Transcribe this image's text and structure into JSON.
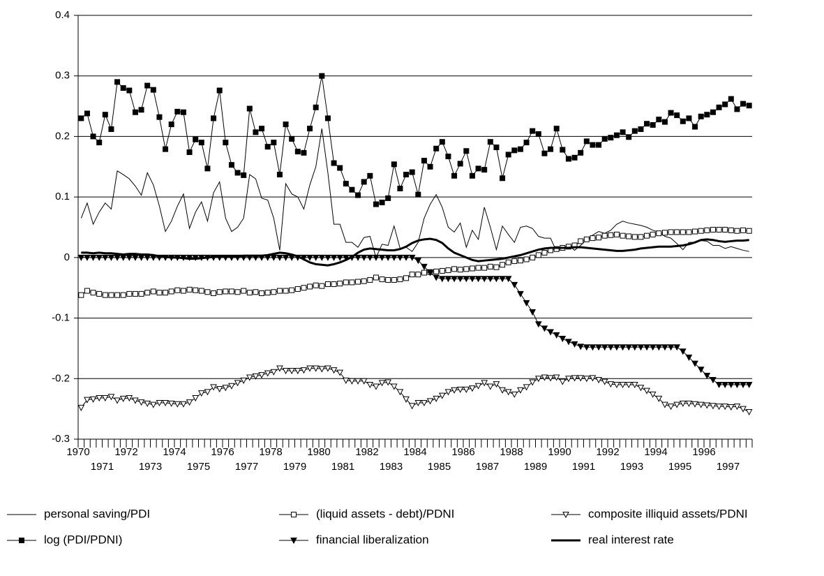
{
  "chart_data": {
    "type": "line",
    "categories": [
      "1970",
      null,
      null,
      null,
      "1971",
      null,
      null,
      null,
      "1972",
      null,
      null,
      null,
      "1973",
      null,
      null,
      null,
      "1974",
      null,
      null,
      null,
      "1975",
      null,
      null,
      null,
      "1976",
      null,
      null,
      null,
      "1977",
      null,
      null,
      null,
      "1978",
      null,
      null,
      null,
      "1979",
      null,
      null,
      null,
      "1980",
      null,
      null,
      null,
      "1981",
      null,
      null,
      null,
      "1982",
      null,
      null,
      null,
      "1983",
      null,
      null,
      null,
      "1984",
      null,
      null,
      null,
      "1985",
      null,
      null,
      null,
      "1986",
      null,
      null,
      null,
      "1987",
      null,
      null,
      null,
      "1988",
      null,
      null,
      null,
      "1989",
      null,
      null,
      null,
      "1990",
      null,
      null,
      null,
      "1991",
      null,
      null,
      null,
      "1992",
      null,
      null,
      null,
      "1993",
      null,
      null,
      null,
      "1994",
      null,
      null,
      null,
      "1995",
      null,
      null,
      null,
      "1996",
      null,
      null,
      null,
      "1997",
      null,
      null,
      null
    ],
    "ylim": [
      -0.3,
      0.4
    ],
    "yticks": [
      -0.3,
      -0.2,
      -0.1,
      0,
      0.1,
      0.2,
      0.3,
      0.4
    ],
    "grid": true,
    "legend": "bottom",
    "series": [
      {
        "name": "personal saving/PDI",
        "color": "#000000",
        "line_width": 1,
        "marker": "none",
        "filled": false,
        "values": [
          0.065,
          0.09,
          0.055,
          0.075,
          0.09,
          0.08,
          0.143,
          0.137,
          0.13,
          0.118,
          0.103,
          0.14,
          0.12,
          0.085,
          0.043,
          0.06,
          0.085,
          0.105,
          0.048,
          0.075,
          0.092,
          0.06,
          0.107,
          0.125,
          0.065,
          0.043,
          0.05,
          0.065,
          0.137,
          0.13,
          0.098,
          0.095,
          0.065,
          0.012,
          0.122,
          0.105,
          0.1,
          0.08,
          0.12,
          0.15,
          0.213,
          0.14,
          0.055,
          0.055,
          0.025,
          0.025,
          0.017,
          0.033,
          0.035,
          0.0,
          0.022,
          0.02,
          0.052,
          0.015,
          0.017,
          0.01,
          0.025,
          0.065,
          0.088,
          0.104,
          0.083,
          0.05,
          0.042,
          0.057,
          0.017,
          0.045,
          0.03,
          0.083,
          0.05,
          0.013,
          0.052,
          0.038,
          0.025,
          0.05,
          0.052,
          0.048,
          0.035,
          0.032,
          0.032,
          0.01,
          0.015,
          0.02,
          0.012,
          0.02,
          0.03,
          0.037,
          0.043,
          0.04,
          0.045,
          0.055,
          0.06,
          0.057,
          0.055,
          0.053,
          0.05,
          0.045,
          0.042,
          0.035,
          0.032,
          0.023,
          0.013,
          0.025,
          0.025,
          0.028,
          0.027,
          0.02,
          0.02,
          0.015,
          0.018,
          0.015,
          0.012,
          0.01
        ]
      },
      {
        "name": "(liquid assets - debt)/PDNI",
        "color": "#000000",
        "line_width": 1,
        "marker": "square",
        "filled": false,
        "values": [
          -0.062,
          -0.055,
          -0.058,
          -0.06,
          -0.062,
          -0.062,
          -0.062,
          -0.062,
          -0.06,
          -0.06,
          -0.06,
          -0.058,
          -0.056,
          -0.058,
          -0.058,
          -0.056,
          -0.054,
          -0.055,
          -0.053,
          -0.054,
          -0.055,
          -0.057,
          -0.059,
          -0.057,
          -0.056,
          -0.056,
          -0.057,
          -0.055,
          -0.058,
          -0.057,
          -0.059,
          -0.058,
          -0.057,
          -0.055,
          -0.055,
          -0.054,
          -0.052,
          -0.05,
          -0.048,
          -0.046,
          -0.047,
          -0.044,
          -0.044,
          -0.043,
          -0.041,
          -0.041,
          -0.04,
          -0.039,
          -0.037,
          -0.033,
          -0.036,
          -0.037,
          -0.037,
          -0.036,
          -0.034,
          -0.028,
          -0.028,
          -0.025,
          -0.024,
          -0.023,
          -0.022,
          -0.021,
          -0.019,
          -0.02,
          -0.019,
          -0.018,
          -0.017,
          -0.017,
          -0.015,
          -0.016,
          -0.012,
          -0.008,
          -0.006,
          -0.005,
          -0.003,
          0.0,
          0.004,
          0.008,
          0.012,
          0.014,
          0.016,
          0.018,
          0.02,
          0.027,
          0.03,
          0.032,
          0.033,
          0.036,
          0.037,
          0.038,
          0.036,
          0.035,
          0.034,
          0.034,
          0.036,
          0.038,
          0.04,
          0.041,
          0.042,
          0.042,
          0.042,
          0.042,
          0.043,
          0.044,
          0.045,
          0.046,
          0.046,
          0.046,
          0.045,
          0.044,
          0.045,
          0.044
        ]
      },
      {
        "name": "composite illiquid assets/PDNI",
        "color": "#000000",
        "line_width": 1,
        "marker": "triangle-down",
        "filled": false,
        "values": [
          -0.248,
          -0.235,
          -0.234,
          -0.232,
          -0.232,
          -0.23,
          -0.236,
          -0.233,
          -0.232,
          -0.236,
          -0.239,
          -0.241,
          -0.243,
          -0.24,
          -0.24,
          -0.241,
          -0.242,
          -0.242,
          -0.239,
          -0.232,
          -0.224,
          -0.222,
          -0.214,
          -0.217,
          -0.215,
          -0.212,
          -0.207,
          -0.203,
          -0.198,
          -0.196,
          -0.194,
          -0.191,
          -0.189,
          -0.183,
          -0.187,
          -0.187,
          -0.187,
          -0.186,
          -0.183,
          -0.183,
          -0.184,
          -0.183,
          -0.186,
          -0.19,
          -0.203,
          -0.204,
          -0.204,
          -0.204,
          -0.21,
          -0.213,
          -0.207,
          -0.206,
          -0.213,
          -0.222,
          -0.234,
          -0.245,
          -0.24,
          -0.24,
          -0.237,
          -0.233,
          -0.228,
          -0.222,
          -0.219,
          -0.218,
          -0.218,
          -0.216,
          -0.212,
          -0.207,
          -0.213,
          -0.209,
          -0.219,
          -0.222,
          -0.226,
          -0.219,
          -0.214,
          -0.206,
          -0.2,
          -0.198,
          -0.199,
          -0.198,
          -0.205,
          -0.2,
          -0.199,
          -0.199,
          -0.2,
          -0.199,
          -0.202,
          -0.205,
          -0.209,
          -0.21,
          -0.21,
          -0.21,
          -0.21,
          -0.215,
          -0.22,
          -0.226,
          -0.233,
          -0.243,
          -0.246,
          -0.243,
          -0.241,
          -0.241,
          -0.242,
          -0.243,
          -0.244,
          -0.245,
          -0.246,
          -0.246,
          -0.247,
          -0.246,
          -0.25,
          -0.255
        ]
      },
      {
        "name": "log (PDI/PDNI)",
        "color": "#000000",
        "line_width": 1,
        "marker": "square",
        "filled": true,
        "values": [
          0.23,
          0.238,
          0.2,
          0.19,
          0.236,
          0.212,
          0.29,
          0.28,
          0.276,
          0.24,
          0.244,
          0.284,
          0.277,
          0.232,
          0.179,
          0.22,
          0.241,
          0.24,
          0.174,
          0.195,
          0.19,
          0.147,
          0.23,
          0.276,
          0.19,
          0.153,
          0.14,
          0.136,
          0.246,
          0.207,
          0.213,
          0.183,
          0.19,
          0.137,
          0.22,
          0.196,
          0.175,
          0.173,
          0.213,
          0.248,
          0.3,
          0.23,
          0.156,
          0.148,
          0.122,
          0.112,
          0.103,
          0.125,
          0.135,
          0.088,
          0.091,
          0.098,
          0.154,
          0.114,
          0.137,
          0.141,
          0.104,
          0.16,
          0.15,
          0.18,
          0.191,
          0.167,
          0.135,
          0.155,
          0.176,
          0.135,
          0.147,
          0.145,
          0.191,
          0.182,
          0.131,
          0.17,
          0.177,
          0.179,
          0.19,
          0.209,
          0.204,
          0.172,
          0.179,
          0.213,
          0.178,
          0.163,
          0.165,
          0.173,
          0.192,
          0.186,
          0.186,
          0.196,
          0.198,
          0.202,
          0.207,
          0.199,
          0.209,
          0.212,
          0.221,
          0.219,
          0.228,
          0.224,
          0.239,
          0.235,
          0.225,
          0.23,
          0.216,
          0.233,
          0.236,
          0.24,
          0.248,
          0.253,
          0.262,
          0.245,
          0.254,
          0.251
        ]
      },
      {
        "name": "financial liberalization",
        "color": "#000000",
        "line_width": 1,
        "marker": "triangle-down",
        "filled": true,
        "values": [
          0,
          0,
          0,
          0,
          0,
          0,
          0,
          0,
          0,
          0,
          0,
          0,
          0,
          0,
          0,
          0,
          0,
          0,
          0,
          0,
          0,
          0,
          0,
          0,
          0,
          0,
          0,
          0,
          0,
          0,
          0,
          0,
          0,
          0,
          0,
          0,
          0,
          0,
          0,
          0,
          0,
          0,
          0,
          0,
          0,
          0,
          0,
          0,
          0,
          0,
          0,
          0,
          0,
          0,
          0,
          0,
          -0.005,
          -0.015,
          -0.025,
          -0.033,
          -0.035,
          -0.035,
          -0.035,
          -0.035,
          -0.035,
          -0.035,
          -0.035,
          -0.035,
          -0.035,
          -0.035,
          -0.035,
          -0.035,
          -0.045,
          -0.06,
          -0.075,
          -0.09,
          -0.11,
          -0.117,
          -0.123,
          -0.128,
          -0.134,
          -0.139,
          -0.143,
          -0.147,
          -0.148,
          -0.148,
          -0.148,
          -0.148,
          -0.148,
          -0.148,
          -0.148,
          -0.148,
          -0.148,
          -0.148,
          -0.148,
          -0.148,
          -0.148,
          -0.148,
          -0.148,
          -0.148,
          -0.155,
          -0.165,
          -0.175,
          -0.185,
          -0.195,
          -0.202,
          -0.21,
          -0.21,
          -0.21,
          -0.21,
          -0.21,
          -0.21
        ]
      },
      {
        "name": "real interest rate",
        "color": "#000000",
        "line_width": 3,
        "marker": "none",
        "filled": false,
        "values": [
          0.008,
          0.008,
          0.007,
          0.008,
          0.007,
          0.007,
          0.006,
          0.005,
          0.006,
          0.006,
          0.005,
          0.005,
          0.004,
          0.002,
          0.001,
          0.0,
          0.0,
          -0.001,
          -0.002,
          -0.002,
          -0.001,
          0.0,
          0.001,
          0.002,
          0.002,
          0.002,
          0.002,
          0.003,
          0.003,
          0.003,
          0.003,
          0.004,
          0.006,
          0.008,
          0.007,
          0.005,
          0.002,
          -0.003,
          -0.008,
          -0.011,
          -0.012,
          -0.013,
          -0.011,
          -0.008,
          -0.004,
          0.001,
          0.008,
          0.013,
          0.015,
          0.014,
          0.013,
          0.012,
          0.012,
          0.014,
          0.018,
          0.024,
          0.028,
          0.03,
          0.031,
          0.029,
          0.024,
          0.015,
          0.008,
          0.004,
          0.0,
          -0.004,
          -0.006,
          -0.005,
          -0.004,
          -0.003,
          -0.002,
          0.0,
          0.002,
          0.004,
          0.007,
          0.01,
          0.013,
          0.015,
          0.016,
          0.016,
          0.016,
          0.016,
          0.017,
          0.017,
          0.016,
          0.015,
          0.014,
          0.013,
          0.012,
          0.011,
          0.011,
          0.012,
          0.013,
          0.015,
          0.016,
          0.017,
          0.018,
          0.018,
          0.018,
          0.019,
          0.02,
          0.022,
          0.025,
          0.029,
          0.03,
          0.029,
          0.027,
          0.026,
          0.027,
          0.028,
          0.028,
          0.029
        ]
      }
    ]
  }
}
